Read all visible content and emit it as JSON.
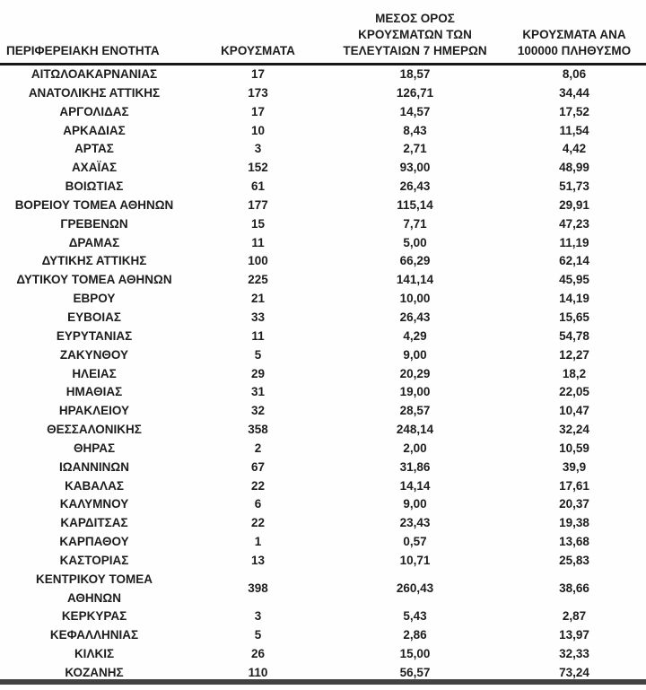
{
  "page": {
    "background_color": "#fefefe",
    "text_color": "#1d1d1d",
    "header_rule_color": "#171717",
    "bottom_rule_color": "#424242"
  },
  "table": {
    "columns": [
      {
        "key": "region",
        "label": "ΠΕΡΙΦΕΡΕΙΑΚΗ ΕΝΟΤΗΤΑ"
      },
      {
        "key": "cases",
        "label": "ΚΡΟΥΣΜΑΤΑ"
      },
      {
        "key": "avg7",
        "label": "ΜΕΣΟΣ ΟΡΟΣ\nΚΡΟΥΣΜΑΤΩΝ ΤΩΝ\nΤΕΛΕΥΤΑΙΩΝ 7 ΗΜΕΡΩΝ"
      },
      {
        "key": "per100k",
        "label": "ΚΡΟΥΣΜΑΤΑ ΑΝΑ\n100000 ΠΛΗΘΥΣΜΟ"
      }
    ],
    "rows": [
      [
        "ΑΙΤΩΛΟΑΚΑΡΝΑΝΙΑΣ",
        "17",
        "18,57",
        "8,06"
      ],
      [
        "ΑΝΑΤΟΛΙΚΗΣ ΑΤΤΙΚΗΣ",
        "173",
        "126,71",
        "34,44"
      ],
      [
        "ΑΡΓΟΛΙΔΑΣ",
        "17",
        "14,57",
        "17,52"
      ],
      [
        "ΑΡΚΑΔΙΑΣ",
        "10",
        "8,43",
        "11,54"
      ],
      [
        "ΑΡΤΑΣ",
        "3",
        "2,71",
        "4,42"
      ],
      [
        "ΑΧΑΪΑΣ",
        "152",
        "93,00",
        "48,99"
      ],
      [
        "ΒΟΙΩΤΙΑΣ",
        "61",
        "26,43",
        "51,73"
      ],
      [
        "ΒΟΡΕΙΟΥ ΤΟΜΕΑ ΑΘΗΝΩΝ",
        "177",
        "115,14",
        "29,91"
      ],
      [
        "ΓΡΕΒΕΝΩΝ",
        "15",
        "7,71",
        "47,23"
      ],
      [
        "ΔΡΑΜΑΣ",
        "11",
        "5,00",
        "11,19"
      ],
      [
        "ΔΥΤΙΚΗΣ ΑΤΤΙΚΗΣ",
        "100",
        "66,29",
        "62,14"
      ],
      [
        "ΔΥΤΙΚΟΥ ΤΟΜΕΑ ΑΘΗΝΩΝ",
        "225",
        "141,14",
        "45,95"
      ],
      [
        "ΕΒΡΟΥ",
        "21",
        "10,00",
        "14,19"
      ],
      [
        "ΕΥΒΟΙΑΣ",
        "33",
        "26,43",
        "15,65"
      ],
      [
        "ΕΥΡΥΤΑΝΙΑΣ",
        "11",
        "4,29",
        "54,78"
      ],
      [
        "ΖΑΚΥΝΘΟΥ",
        "5",
        "9,00",
        "12,27"
      ],
      [
        "ΗΛΕΙΑΣ",
        "29",
        "20,29",
        "18,2"
      ],
      [
        "ΗΜΑΘΙΑΣ",
        "31",
        "19,00",
        "22,05"
      ],
      [
        "ΗΡΑΚΛΕΙΟΥ",
        "32",
        "28,57",
        "10,47"
      ],
      [
        "ΘΕΣΣΑΛΟΝΙΚΗΣ",
        "358",
        "248,14",
        "32,24"
      ],
      [
        "ΘΗΡΑΣ",
        "2",
        "2,00",
        "10,59"
      ],
      [
        "ΙΩΑΝΝΙΝΩΝ",
        "67",
        "31,86",
        "39,9"
      ],
      [
        "ΚΑΒΑΛΑΣ",
        "22",
        "14,14",
        "17,61"
      ],
      [
        "ΚΑΛΥΜΝΟΥ",
        "6",
        "9,00",
        "20,37"
      ],
      [
        "ΚΑΡΔΙΤΣΑΣ",
        "22",
        "23,43",
        "19,38"
      ],
      [
        "ΚΑΡΠΑΘΟΥ",
        "1",
        "0,57",
        "13,68"
      ],
      [
        "ΚΑΣΤΟΡΙΑΣ",
        "13",
        "10,71",
        "25,83"
      ],
      [
        "ΚΕΝΤΡΙΚΟΥ ΤΟΜΕΑ\nΑΘΗΝΩΝ",
        "398",
        "260,43",
        "38,66"
      ],
      [
        "ΚΕΡΚΥΡΑΣ",
        "3",
        "5,43",
        "2,87"
      ],
      [
        "ΚΕΦΑΛΛΗΝΙΑΣ",
        "5",
        "2,86",
        "13,97"
      ],
      [
        "ΚΙΛΚΙΣ",
        "26",
        "15,00",
        "32,33"
      ],
      [
        "ΚΟΖΑΝΗΣ",
        "110",
        "56,57",
        "73,24"
      ]
    ]
  }
}
